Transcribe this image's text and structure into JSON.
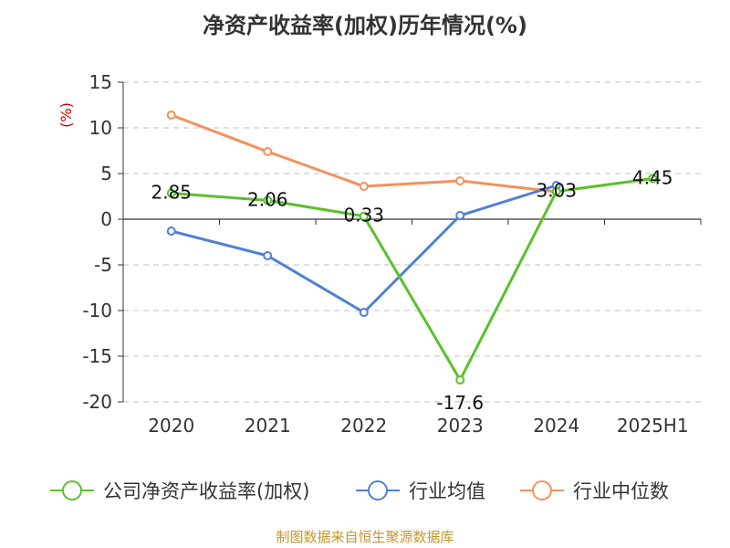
{
  "title": "净资产收益率(加权)历年情况(%)",
  "source": "制图数据来自恒生聚源数据库",
  "colors": {
    "company": "#5ac02b",
    "industry_avg": "#4f7fd9",
    "industry_median": "#f5915a",
    "axis": "#333333",
    "grid": "#cccccc",
    "unit": "#cc0000",
    "source": "#c8952a"
  },
  "chart_data": {
    "type": "line",
    "title": "净资产收益率(加权)历年情况(%)",
    "ylabel": "(%)",
    "xlabel": "",
    "categories": [
      "2020",
      "2021",
      "2022",
      "2023",
      "2024",
      "2025H1"
    ],
    "ylim": [
      -20,
      15
    ],
    "yticks": [
      15,
      10,
      5,
      0,
      -5,
      -10,
      -15,
      -20
    ],
    "grid": true,
    "legend_position": "bottom",
    "series": [
      {
        "name": "公司净资产收益率(加权)",
        "color": "#5ac02b",
        "values": [
          2.85,
          2.06,
          0.33,
          -17.6,
          3.03,
          4.45
        ],
        "labels": [
          "2.85",
          "2.06",
          "0.33",
          "-17.6",
          "3.03",
          "4.45"
        ]
      },
      {
        "name": "行业均值",
        "color": "#4f7fd9",
        "values": [
          -1.3,
          -4.0,
          -10.2,
          0.4,
          3.7,
          null
        ]
      },
      {
        "name": "行业中位数",
        "color": "#f5915a",
        "values": [
          11.4,
          7.4,
          3.6,
          4.2,
          3.0,
          null
        ]
      }
    ]
  }
}
